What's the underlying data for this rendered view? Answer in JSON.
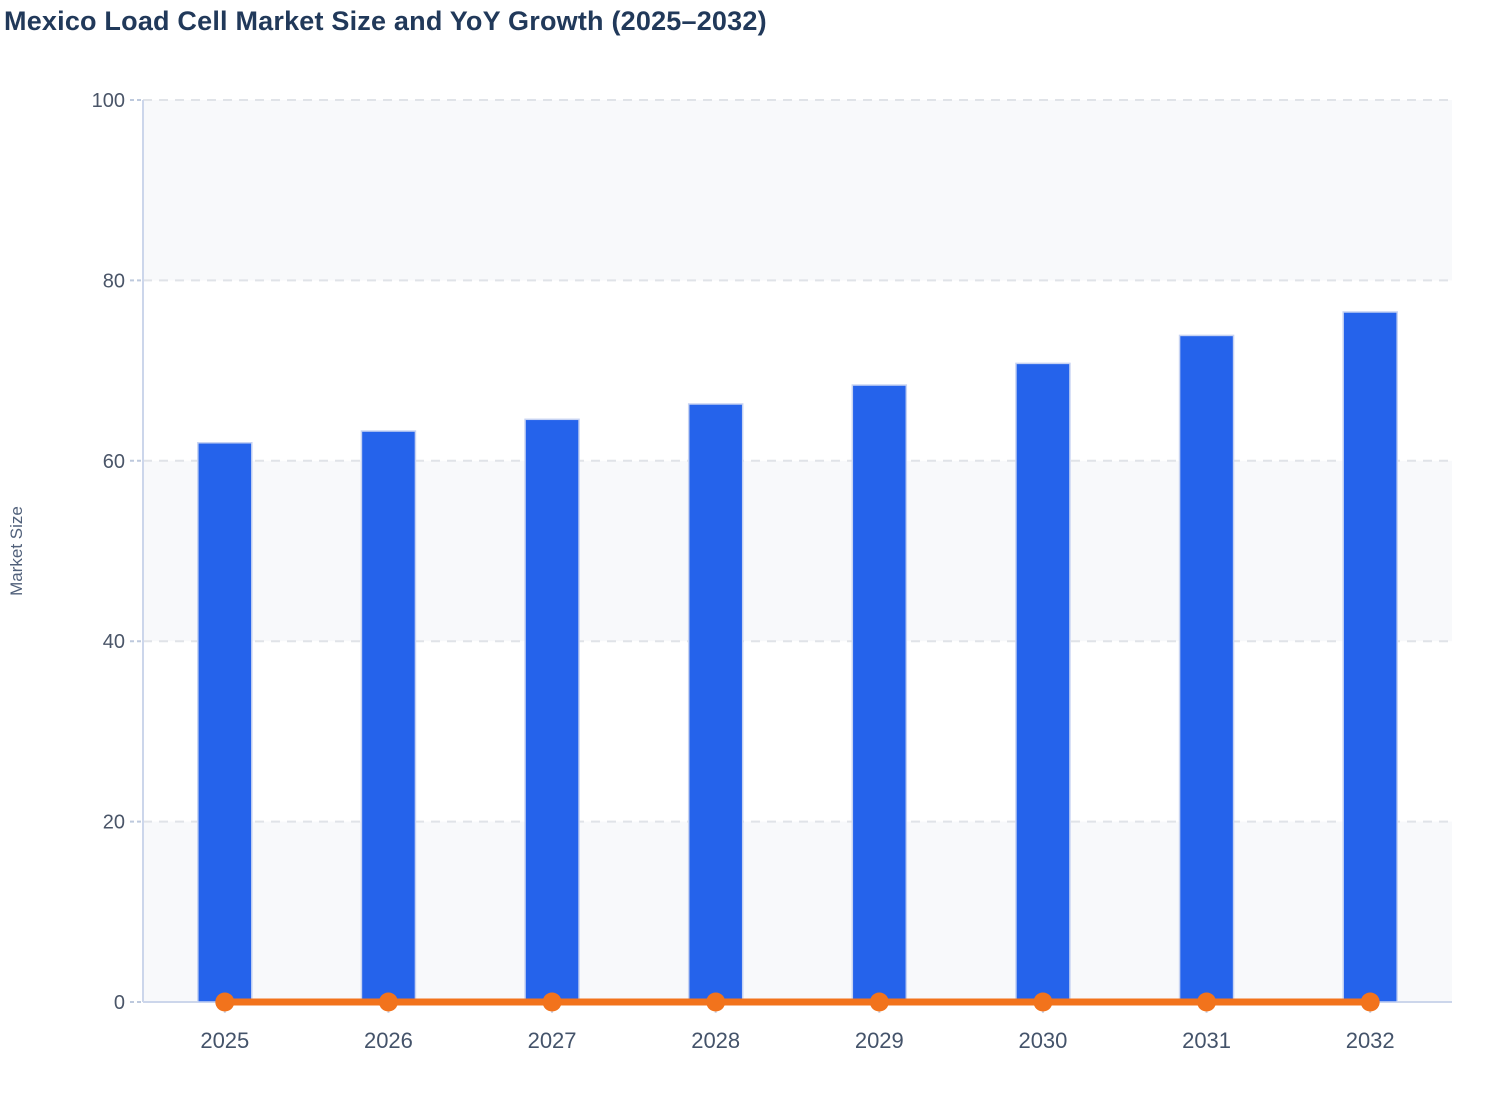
{
  "chart_title": "Mexico Load Cell Market Size and YoY Growth (2025–2032)",
  "colors": {
    "title_text": "#21395a",
    "bar_fill": "#2563eb",
    "bar_border": "#c7d3f2",
    "line_orange": "#f2731c",
    "band_fill": "#f8f9fb",
    "gridline": "#e0e3e8",
    "axis_line": "#ccd6eb",
    "y_tick_mark": "#bdc9dd",
    "tick_label": "#4a5568"
  },
  "chart_data": {
    "type": "bar",
    "title": "Mexico Load Cell Market Size and YoY Growth (2025–2032)",
    "categories": [
      "2025",
      "2026",
      "2027",
      "2028",
      "2029",
      "2030",
      "2031",
      "2032"
    ],
    "series": [
      {
        "name": "Market Size",
        "type": "bar",
        "color": "#2563eb",
        "values": [
          62,
          63.3,
          64.6,
          66.3,
          68.4,
          70.8,
          73.9,
          76.5
        ]
      },
      {
        "name": "YoY Growth",
        "type": "line",
        "color": "#f2731c",
        "values": [
          0,
          0,
          0,
          0,
          0,
          0,
          0,
          0
        ]
      }
    ],
    "xlabel": "",
    "ylabel": "Market Size",
    "ylim": [
      0,
      100
    ],
    "yticks": [
      0,
      20,
      40,
      60,
      80,
      100
    ],
    "grid": "dashed horizontal",
    "background_bands": "alternating light bands between y ticks",
    "legend": "none",
    "data_labels": "none"
  }
}
